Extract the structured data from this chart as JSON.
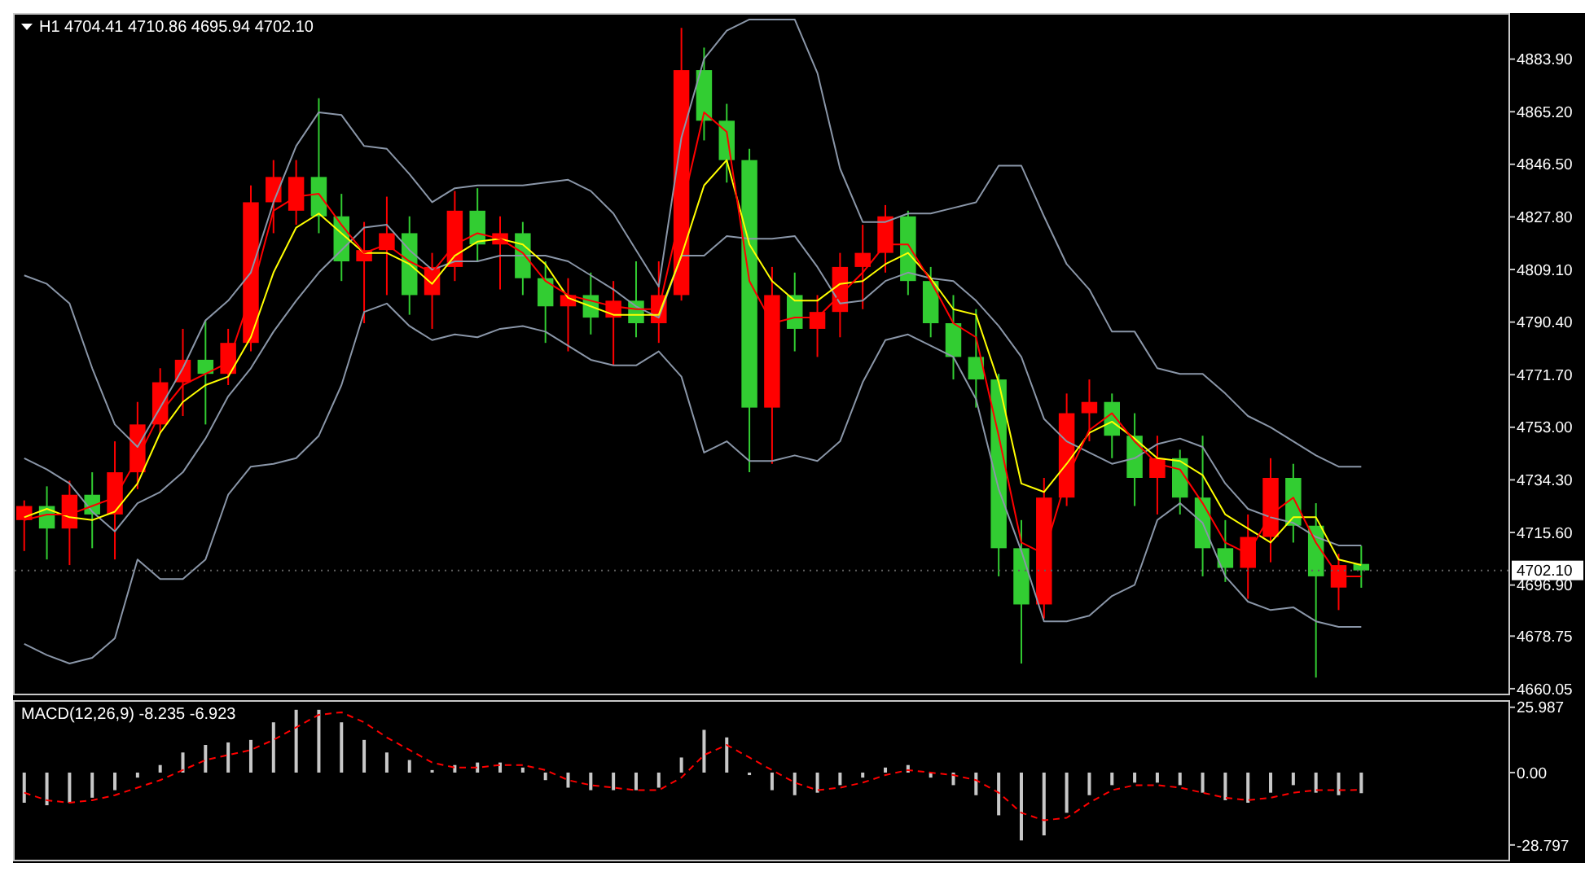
{
  "chart_data": [
    {
      "type": "candlestick",
      "title": "H1 4704.41 4710.86 4695.94 4702.10",
      "tick_labels": "y",
      "categories": [
        null,
        null,
        null,
        null,
        null,
        null,
        null,
        null,
        null,
        null,
        null,
        null,
        null,
        null,
        null,
        null,
        null,
        null,
        null,
        null,
        null,
        null,
        null,
        null,
        null,
        null,
        null,
        null,
        null,
        null,
        null,
        null,
        null,
        null,
        null,
        null,
        null,
        null,
        null,
        null,
        null,
        null,
        null,
        null,
        null,
        null,
        null,
        null,
        null,
        null,
        null,
        null,
        null,
        null,
        null,
        null,
        null,
        null,
        null,
        null,
        null,
        null,
        null,
        null,
        null,
        null
      ],
      "ohlc": [
        [
          4720,
          4727,
          4709,
          4725
        ],
        [
          4725,
          4732,
          4706,
          4717
        ],
        [
          4717,
          4734,
          4704,
          4729
        ],
        [
          4729,
          4737,
          4710,
          4722
        ],
        [
          4722,
          4748,
          4706,
          4737
        ],
        [
          4737,
          4762,
          4731,
          4754
        ],
        [
          4754,
          4774,
          4751,
          4769
        ],
        [
          4769,
          4788,
          4757,
          4777
        ],
        [
          4777,
          4791,
          4754,
          4772
        ],
        [
          4772,
          4788,
          4768,
          4783
        ],
        [
          4783,
          4839,
          4780,
          4833
        ],
        [
          4833,
          4848,
          4822,
          4842
        ],
        [
          4830,
          4848,
          4825,
          4842
        ],
        [
          4842,
          4870,
          4822,
          4828
        ],
        [
          4828,
          4836,
          4805,
          4812
        ],
        [
          4812,
          4826,
          4790,
          4816
        ],
        [
          4816,
          4835,
          4800,
          4822
        ],
        [
          4822,
          4828,
          4793,
          4800
        ],
        [
          4800,
          4815,
          4788,
          4810
        ],
        [
          4810,
          4837,
          4805,
          4830
        ],
        [
          4830,
          4838,
          4812,
          4818
        ],
        [
          4818,
          4828,
          4802,
          4822
        ],
        [
          4822,
          4826,
          4800,
          4806
        ],
        [
          4806,
          4812,
          4783,
          4796
        ],
        [
          4796,
          4806,
          4780,
          4800
        ],
        [
          4800,
          4808,
          4786,
          4792
        ],
        [
          4792,
          4805,
          4775,
          4798
        ],
        [
          4798,
          4812,
          4785,
          4790
        ],
        [
          4790,
          4812,
          4783,
          4800
        ],
        [
          4800,
          4895,
          4798,
          4880
        ],
        [
          4880,
          4888,
          4855,
          4862
        ],
        [
          4862,
          4868,
          4840,
          4848
        ],
        [
          4848,
          4852,
          4737,
          4760
        ],
        [
          4760,
          4810,
          4740,
          4800
        ],
        [
          4800,
          4808,
          4780,
          4788
        ],
        [
          4788,
          4800,
          4778,
          4794
        ],
        [
          4794,
          4815,
          4785,
          4810
        ],
        [
          4810,
          4825,
          4795,
          4815
        ],
        [
          4815,
          4832,
          4808,
          4828
        ],
        [
          4828,
          4830,
          4800,
          4805
        ],
        [
          4805,
          4810,
          4785,
          4790
        ],
        [
          4790,
          4800,
          4770,
          4778
        ],
        [
          4778,
          4795,
          4760,
          4770
        ],
        [
          4770,
          4772,
          4700,
          4710
        ],
        [
          4710,
          4720,
          4669,
          4690
        ],
        [
          4690,
          4735,
          4685,
          4728
        ],
        [
          4728,
          4765,
          4725,
          4758
        ],
        [
          4758,
          4770,
          4748,
          4762
        ],
        [
          4762,
          4765,
          4742,
          4750
        ],
        [
          4750,
          4758,
          4725,
          4735
        ],
        [
          4735,
          4750,
          4722,
          4742
        ],
        [
          4742,
          4745,
          4722,
          4728
        ],
        [
          4728,
          4750,
          4700,
          4710
        ],
        [
          4710,
          4720,
          4698,
          4703
        ],
        [
          4703,
          4722,
          4692,
          4714
        ],
        [
          4714,
          4742,
          4705,
          4735
        ],
        [
          4735,
          4740,
          4712,
          4718
        ],
        [
          4718,
          4726,
          4664,
          4700
        ],
        [
          4696,
          4708,
          4688,
          4704
        ],
        [
          4704.41,
          4710.86,
          4695.94,
          4702.1
        ],
        null,
        null,
        null,
        null,
        null,
        null
      ],
      "colors": [
        "#ff0000",
        "#32cd32",
        "#ff0000",
        "#32cd32",
        "#ff0000",
        "#ff0000",
        "#ff0000",
        "#ff0000",
        "#32cd32",
        "#ff0000",
        "#ff0000",
        "#ff0000",
        "#ff0000",
        "#32cd32",
        "#32cd32",
        "#ff0000",
        "#ff0000",
        "#32cd32",
        "#ff0000",
        "#ff0000",
        "#32cd32",
        "#ff0000",
        "#32cd32",
        "#32cd32",
        "#ff0000",
        "#32cd32",
        "#ff0000",
        "#32cd32",
        "#ff0000",
        "#ff0000",
        "#32cd32",
        "#32cd32",
        "#32cd32",
        "#ff0000",
        "#32cd32",
        "#ff0000",
        "#ff0000",
        "#ff0000",
        "#ff0000",
        "#32cd32",
        "#32cd32",
        "#32cd32",
        "#32cd32",
        "#32cd32",
        "#32cd32",
        "#ff0000",
        "#ff0000",
        "#ff0000",
        "#32cd32",
        "#32cd32",
        "#ff0000",
        "#32cd32",
        "#32cd32",
        "#32cd32",
        "#ff0000",
        "#ff0000",
        "#32cd32",
        "#32cd32",
        "#ff0000",
        "#32cd32",
        null,
        null,
        null,
        null,
        null,
        null
      ],
      "series": [
        {
          "type": "line",
          "color": "#8a96a8",
          "values": [
            4807,
            4804,
            4797,
            4774,
            4754,
            4746,
            4760,
            4774,
            4791,
            4798,
            4808,
            4833,
            4853,
            4865,
            4864,
            4853,
            4852,
            4843,
            4833,
            4838,
            4839,
            4839,
            4839,
            4840,
            4841,
            4837,
            4829,
            4816,
            4803,
            4856,
            4884,
            4894,
            4898,
            4898,
            4898,
            4879,
            4845,
            4826,
            4826,
            4829,
            4829,
            4831,
            4833,
            4846,
            4846,
            4828,
            4811,
            4802,
            4787,
            4787,
            4774,
            4772,
            4772,
            4765,
            4757,
            4753,
            4748,
            4743,
            4739,
            4739,
            null,
            null,
            null,
            null,
            null,
            null
          ]
        },
        {
          "type": "line",
          "color": "#8a96a8",
          "values": [
            4742,
            4738,
            4733,
            4723,
            4716,
            4726,
            4730,
            4737,
            4749,
            4764,
            4774,
            4787,
            4798,
            4808,
            4816,
            4824,
            4825,
            4816,
            4809,
            4812,
            4812,
            4814,
            4814,
            4814,
            4812,
            4807,
            4802,
            4796,
            4792,
            4814,
            4814,
            4821,
            4820,
            4820,
            4821,
            4810,
            4797,
            4798,
            4805,
            4808,
            4806,
            4805,
            4798,
            4789,
            4778,
            4756,
            4748,
            4744,
            4740,
            4742,
            4747,
            4749,
            4746,
            4733,
            4724,
            4721,
            4719,
            4714,
            4711,
            4711,
            null,
            null,
            null,
            null,
            null,
            null
          ]
        },
        {
          "type": "line",
          "color": "#8a96a8",
          "values": [
            4676,
            4672,
            4669,
            4671,
            4678,
            4706,
            4699,
            4699,
            4706,
            4729,
            4739,
            4740,
            4742,
            4750,
            4768,
            4794,
            4797,
            4789,
            4784,
            4786,
            4785,
            4788,
            4789,
            4787,
            4782,
            4777,
            4775,
            4775,
            4780,
            4771,
            4744,
            4748,
            4741,
            4741,
            4743,
            4741,
            4748,
            4769,
            4784,
            4786,
            4782,
            4778,
            4763,
            4731,
            4709,
            4684,
            4684,
            4686,
            4693,
            4697,
            4720,
            4726,
            4719,
            4700,
            4691,
            4688,
            4689,
            4684,
            4682,
            4682,
            null,
            null,
            null,
            null,
            null,
            null
          ]
        },
        {
          "type": "line",
          "color": "#ffff00",
          "values": [
            4721,
            4724,
            4721,
            4720,
            4723,
            4733,
            4751,
            4762,
            4768,
            4771,
            4785,
            4808,
            4824,
            4829,
            4822,
            4815,
            4815,
            4811,
            4804,
            4814,
            4819,
            4820,
            4818,
            4811,
            4799,
            4796,
            4793,
            4793,
            4793,
            4814,
            4839,
            4848,
            4818,
            4805,
            4798,
            4798,
            4804,
            4805,
            4811,
            4815,
            4806,
            4795,
            4793,
            4769,
            4733,
            4730,
            4740,
            4751,
            4755,
            4749,
            4742,
            4741,
            4736,
            4722,
            4717,
            4712,
            4721,
            4721,
            4706,
            4704,
            null,
            null,
            null,
            null,
            null,
            null
          ]
        },
        {
          "type": "line",
          "color": "#ff0000",
          "values": [
            4720,
            4722,
            4722,
            4725,
            4728,
            4742,
            4758,
            4768,
            4772,
            4776,
            4800,
            4830,
            4835,
            4836,
            4825,
            4815,
            4818,
            4812,
            4808,
            4818,
            4822,
            4820,
            4815,
            4805,
            4800,
            4798,
            4796,
            4795,
            4795,
            4830,
            4865,
            4858,
            4805,
            4790,
            4792,
            4792,
            4800,
            4808,
            4818,
            4818,
            4805,
            4790,
            4785,
            4750,
            4712,
            4708,
            4735,
            4752,
            4758,
            4748,
            4740,
            4738,
            4726,
            4712,
            4708,
            4722,
            4728,
            4712,
            4700,
            4700,
            null,
            null,
            null,
            null,
            null,
            null
          ]
        }
      ],
      "ylim": [
        4658,
        4900
      ],
      "yticks": [
        {
          "value": 4883.9,
          "label": "4883.90"
        },
        {
          "value": 4865.2,
          "label": "4865.20"
        },
        {
          "value": 4846.5,
          "label": "4846.50"
        },
        {
          "value": 4827.8,
          "label": "4827.80"
        },
        {
          "value": 4809.1,
          "label": "4809.10"
        },
        {
          "value": 4790.4,
          "label": "4790.40"
        },
        {
          "value": 4771.7,
          "label": "4771.70"
        },
        {
          "value": 4753,
          "label": "4753.00"
        },
        {
          "value": 4734.3,
          "label": "4734.30"
        },
        {
          "value": 4715.6,
          "label": "4715.60"
        },
        {
          "value": 4696.9,
          "label": "4696.90"
        },
        {
          "value": 4678.75,
          "label": "4678.75"
        },
        {
          "value": 4660.05,
          "label": "4660.05"
        }
      ],
      "ref_lines": [
        {
          "axis": "y",
          "value": 4702.1,
          "label": "4702.10",
          "color": "#606060"
        }
      ]
    },
    {
      "type": "bar",
      "title": "MACD(12,26,9) -8.235 -6.923",
      "tick_labels": "y",
      "color": "#c8c8c8",
      "categories": [
        null,
        null,
        null,
        null,
        null,
        null,
        null,
        null,
        null,
        null,
        null,
        null,
        null,
        null,
        null,
        null,
        null,
        null,
        null,
        null,
        null,
        null,
        null,
        null,
        null,
        null,
        null,
        null,
        null,
        null,
        null,
        null,
        null,
        null,
        null,
        null,
        null,
        null,
        null,
        null,
        null,
        null,
        null,
        null,
        null,
        null,
        null,
        null,
        null,
        null,
        null,
        null,
        null,
        null,
        null,
        null,
        null,
        null,
        null,
        null,
        null,
        null,
        null,
        null,
        null,
        null
      ],
      "values": [
        -12,
        -13,
        -12,
        -10,
        -7,
        -2,
        3,
        8,
        11,
        12,
        13,
        20,
        25,
        25,
        20,
        13,
        8,
        5,
        1,
        3,
        4,
        4,
        2,
        -3,
        -6,
        -7,
        -7,
        -7,
        -6,
        6,
        17,
        14,
        -1,
        -7,
        -9,
        -8,
        -5,
        -2,
        2,
        3,
        -2,
        -5,
        -9,
        -17,
        -27,
        -25,
        -16,
        -9,
        -5,
        -4,
        -4,
        -5,
        -8,
        -11,
        -12,
        -8,
        -5,
        -8,
        -9,
        -8.2,
        null,
        null,
        null,
        null,
        null,
        null
      ],
      "series": [
        {
          "type": "line",
          "color": "#ff0000",
          "line_style": "dashed",
          "values": [
            -8,
            -11,
            -12,
            -11,
            -9,
            -6,
            -3,
            1,
            5,
            7,
            9,
            13,
            18,
            23,
            24,
            20,
            14,
            9,
            4,
            2,
            2,
            3,
            3,
            1,
            -3,
            -5,
            -6,
            -7,
            -7,
            -2,
            7,
            11,
            6,
            1,
            -4,
            -7,
            -6,
            -4,
            -1,
            1,
            0,
            -1,
            -3,
            -8,
            -16,
            -19,
            -18,
            -12,
            -7,
            -5,
            -5,
            -6,
            -8,
            -10,
            -11,
            -10,
            -8,
            -7,
            -7,
            -6.9,
            null,
            null,
            null,
            null,
            null,
            null
          ]
        }
      ],
      "ylim": [
        -35,
        28.5
      ],
      "yticks": [
        25.987,
        {
          "value": 0,
          "label": "0.00"
        },
        -28.797
      ]
    }
  ]
}
